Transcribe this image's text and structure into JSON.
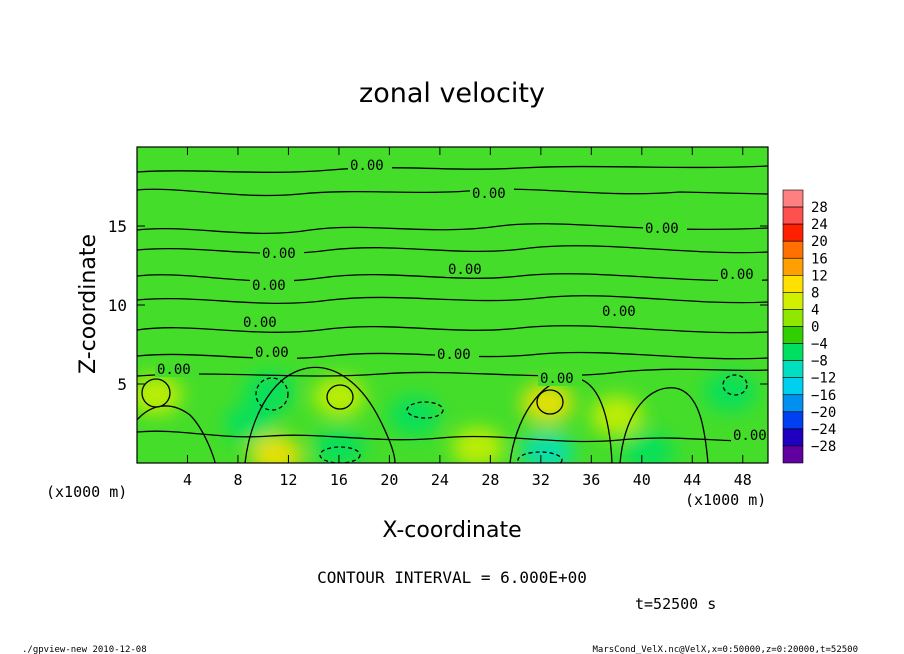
{
  "chart_data": {
    "type": "heatmap",
    "title": "zonal velocity",
    "xlabel": "X-coordinate",
    "ylabel": "Z-coordinate",
    "x_unit_left": "(x1000 m)",
    "x_unit_right": "(x1000 m)",
    "xlim": [
      0,
      50
    ],
    "ylim": [
      0,
      20
    ],
    "x_ticks": [
      "4",
      "8",
      "12",
      "16",
      "20",
      "24",
      "28",
      "32",
      "36",
      "40",
      "44",
      "48"
    ],
    "x_tick_values": [
      4,
      8,
      12,
      16,
      20,
      24,
      28,
      32,
      36,
      40,
      44,
      48
    ],
    "y_ticks": [
      "5",
      "10",
      "15"
    ],
    "y_tick_values": [
      5,
      10,
      15
    ],
    "contour_label": "0.00",
    "contour_interval_text": "CONTOUR INTERVAL = 6.000E+00",
    "time_text": "t=52500 s",
    "colorbar": {
      "labels": [
        "28",
        "24",
        "20",
        "16",
        "12",
        "8",
        "4",
        "0",
        "−4",
        "−8",
        "−12",
        "−16",
        "−20",
        "−24",
        "−28"
      ],
      "colors": [
        "#ff8080",
        "#ff5050",
        "#ff2000",
        "#ff7000",
        "#ffa000",
        "#ffe000",
        "#d0f000",
        "#90e800",
        "#30d000",
        "#00e060",
        "#00e0c0",
        "#00d0f0",
        "#0090f0",
        "#0040f0",
        "#2000c0",
        "#6000a0"
      ]
    },
    "regions": [
      {
        "x": 9,
        "z": 2.5,
        "v": -6
      },
      {
        "x": 10.5,
        "z": 4.5,
        "v": -8
      },
      {
        "x": 16,
        "z": 1,
        "v": -8
      },
      {
        "x": 22,
        "z": 3,
        "v": -6
      },
      {
        "x": 32.5,
        "z": 0.7,
        "v": -10
      },
      {
        "x": 40.5,
        "z": 0.7,
        "v": -8
      },
      {
        "x": 47,
        "z": 4.5,
        "v": -6
      },
      {
        "x": 1.5,
        "z": 4.3,
        "v": 6
      },
      {
        "x": 11,
        "z": 0.5,
        "v": 8
      },
      {
        "x": 16,
        "z": 4.2,
        "v": 6
      },
      {
        "x": 32.5,
        "z": 3.8,
        "v": 8
      },
      {
        "x": 27,
        "z": 1,
        "v": 4
      },
      {
        "x": 38,
        "z": 3,
        "v": 4
      }
    ]
  },
  "footer": {
    "left": "./gpview-new  2010-12-08",
    "right": "MarsCond_VelX.nc@VelX,x=0:50000,z=0:20000,t=52500"
  }
}
